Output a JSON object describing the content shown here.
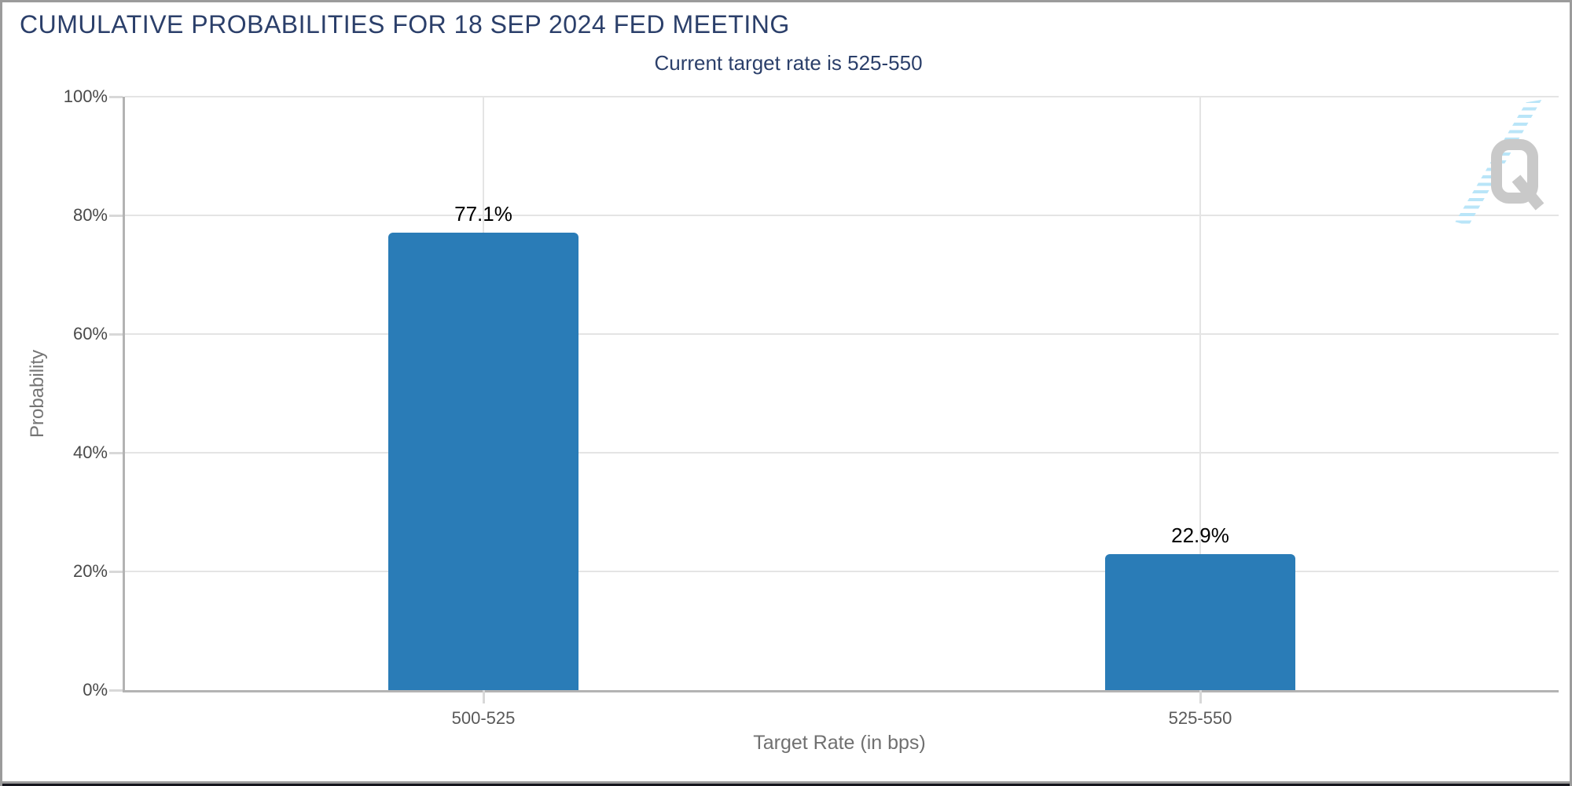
{
  "header": {
    "title": "CUMULATIVE PROBABILITIES FOR 18 SEP 2024 FED MEETING",
    "subtitle": "Current target rate is 525-550"
  },
  "chart_data": {
    "type": "bar",
    "title": "CUMULATIVE PROBABILITIES FOR 18 SEP 2024 FED MEETING",
    "subtitle": "Current target rate is 525-550",
    "categories": [
      "500-525",
      "525-550"
    ],
    "values": [
      77.1,
      22.9
    ],
    "value_labels": [
      "77.1%",
      "22.9%"
    ],
    "xlabel": "Target Rate (in bps)",
    "ylabel": "Probability",
    "ylim": [
      0,
      100
    ],
    "yticks": [
      0,
      20,
      40,
      60,
      80,
      100
    ],
    "ytick_labels": [
      "0%",
      "20%",
      "40%",
      "60%",
      "80%",
      "100%"
    ],
    "grid": true,
    "legend": false,
    "bar_color": "#2a7cb7",
    "plot_background": "#ffffff"
  },
  "colors": {
    "title_navy": "#2b3f6a",
    "axis_line": "#b3b3b3",
    "gridline": "#e4e4e4",
    "tick_label": "#4a4a4a",
    "bar_blue": "#2a7cb7",
    "frame_gray": "#9b9b9b",
    "bottom_strip": "#15151d"
  },
  "watermark": {
    "name": "quikstrike-q-logo",
    "letter": "Q",
    "q_color": "#c9c9c9",
    "streak_color": "#b9e5f8"
  }
}
